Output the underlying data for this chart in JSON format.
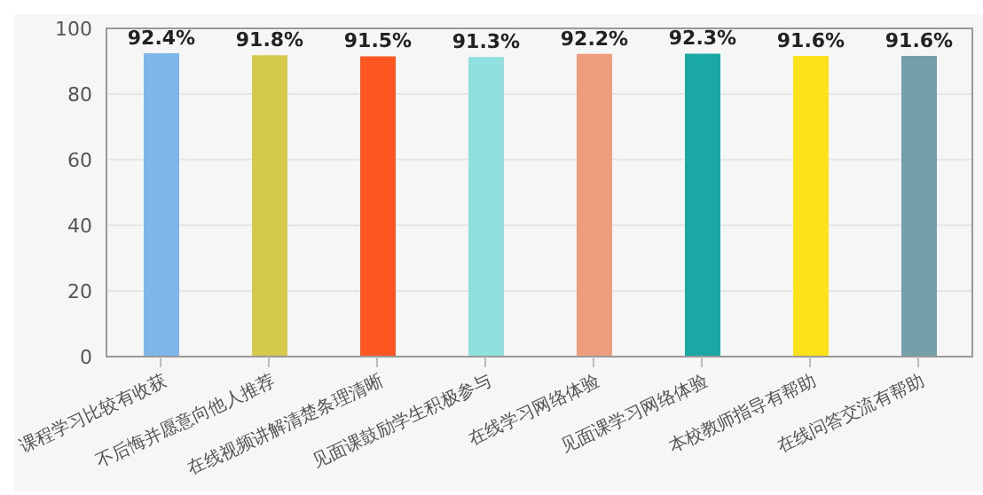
{
  "chart_data": {
    "type": "bar",
    "categories": [
      "课程学习比较有收获",
      "不后悔并愿意向他人推荐",
      "在线视频讲解清楚条理清晰",
      "见面课鼓励学生积极参与",
      "在线学习网络体验",
      "见面课学习网络体验",
      "本校教师指导有帮助",
      "在线问答交流有帮助"
    ],
    "values": [
      92.4,
      91.8,
      91.5,
      91.3,
      92.2,
      92.3,
      91.6,
      91.6
    ],
    "value_labels": [
      "92.4%",
      "91.8%",
      "91.5%",
      "91.3%",
      "92.2%",
      "92.3%",
      "91.6%",
      "91.6%"
    ],
    "colors": [
      "#7eb6ea",
      "#d4c94a",
      "#ff5722",
      "#8fe0de",
      "#ee9d7e",
      "#1aa8a4",
      "#fde21a",
      "#73a0ab"
    ],
    "ylim": [
      0,
      100
    ],
    "yticks": [
      0,
      20,
      40,
      60,
      80,
      100
    ],
    "grid": "y"
  }
}
